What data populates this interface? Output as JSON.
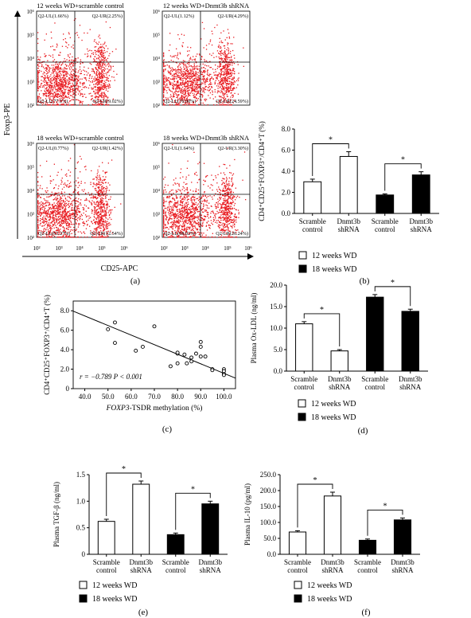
{
  "colors": {
    "flow_dots": "#e8191f",
    "bar_12": "#ffffff",
    "bar_18": "#000000",
    "axis": "#000000",
    "line": "#000000"
  },
  "panels": {
    "a": {
      "label": "(a)"
    },
    "b": {
      "label": "(b)"
    },
    "c": {
      "label": "(c)"
    },
    "d": {
      "label": "(d)"
    },
    "e": {
      "label": "(e)"
    },
    "f": {
      "label": "(f)"
    }
  },
  "flow": {
    "y_axis_label": "Foxp3-PE",
    "x_axis_label": "CD25-APC",
    "tick_labels": [
      "10²",
      "10³",
      "10⁴",
      "10⁵",
      "10⁶"
    ],
    "bottom_ticks": [
      "10²",
      "10³",
      "10⁴",
      "10⁵",
      "10⁶"
    ],
    "plots": [
      {
        "title": "12 weeks WD+scramble control",
        "ul": "Q2-UL(1.66%)",
        "ur": "Q2-UR(2.25%)",
        "ll": "Q2-LL(77.1%)",
        "lr": "Q2-LR(9.02%)"
      },
      {
        "title": "12 weeks WD+Dnmt3b shRNA",
        "ul": "Q2-UL(1.12%)",
        "ur": "Q2-UR(4.29%)",
        "ll": "Q2-LL(70.00%)",
        "lr": "Q2-LR(24.59%)"
      },
      {
        "title": "18 weeks WD+scramble control",
        "ul": "Q2-UL(0.77%)",
        "ur": "Q2-UR(1.42%)",
        "ll": "Q2-LL(63.27%)",
        "lr": "Q2-LR(12.54%)"
      },
      {
        "title": "18 weeks WD+Dnmt3b shRNA",
        "ul": "Q2-UL(1.64%)",
        "ur": "Q2-UR(3.30%)",
        "ll": "Q2-LL(68.02%)",
        "lr": "Q2-LR(26.24%)"
      }
    ]
  },
  "legend": {
    "label_12": "12 weeks WD",
    "label_18": "18 weeks WD"
  },
  "chart_data": [
    {
      "panel": "b",
      "type": "bar",
      "categories": [
        [
          "Scramble",
          "control"
        ],
        [
          "Dnmt3b",
          "shRNA"
        ],
        [
          "Scramble",
          "control"
        ],
        [
          "Dnmt3b",
          "shRNA"
        ]
      ],
      "values": [
        3.0,
        5.4,
        1.75,
        3.65
      ],
      "errors": [
        0.25,
        0.45,
        0.1,
        0.3
      ],
      "groups": [
        "12 weeks WD",
        "12 weeks WD",
        "18 weeks WD",
        "18 weeks WD"
      ],
      "ylabel": "CD4⁺CD25⁺FOXP3⁺/CD4⁺T (%)",
      "ylim": [
        0,
        8
      ],
      "yticks": [
        "0.0",
        "2.0",
        "4.0",
        "6.0",
        "8.0"
      ],
      "significance": "*"
    },
    {
      "panel": "c",
      "type": "scatter",
      "xlabel_italic": "FOXP3",
      "xlabel_rest": "-TSDR methylation (%)",
      "ylabel": "CD4⁺CD25⁺FOXP3⁺/CD4⁺T (%)",
      "xlim": [
        35,
        105
      ],
      "ylim": [
        0,
        9
      ],
      "xticks": [
        "40.0",
        "50.0",
        "60.0",
        "70.0",
        "80.0",
        "90.0",
        "100.0"
      ],
      "yticks": [
        "0",
        "2.0",
        "4.0",
        "6.0",
        "8.0"
      ],
      "annotation_r": "r = −0.789",
      "annotation_p": "P < 0.001",
      "points": [
        [
          50,
          6.1
        ],
        [
          53,
          6.8
        ],
        [
          53,
          4.7
        ],
        [
          62,
          3.9
        ],
        [
          65,
          4.3
        ],
        [
          70,
          6.4
        ],
        [
          77,
          2.3
        ],
        [
          80,
          3.6
        ],
        [
          80,
          2.6
        ],
        [
          80,
          3.7
        ],
        [
          83,
          3.5
        ],
        [
          84,
          2.6
        ],
        [
          86,
          3.2
        ],
        [
          86,
          2.8
        ],
        [
          88,
          3.6
        ],
        [
          90,
          3.3
        ],
        [
          90,
          4.8
        ],
        [
          90,
          4.3
        ],
        [
          92,
          3.3
        ],
        [
          95,
          2.0
        ],
        [
          95,
          1.9
        ],
        [
          100,
          2.0
        ],
        [
          100,
          1.8
        ],
        [
          100,
          1.5
        ],
        [
          100,
          1.4
        ]
      ],
      "fit": {
        "slope": -0.0983,
        "intercept": 11.4
      }
    },
    {
      "panel": "d",
      "type": "bar",
      "categories": [
        [
          "Scramble",
          "control"
        ],
        [
          "Dnmt3b",
          "shRNA"
        ],
        [
          "Scramble",
          "control"
        ],
        [
          "Dnmt3b",
          "shRNA"
        ]
      ],
      "values": [
        11.0,
        4.7,
        17.2,
        13.9
      ],
      "errors": [
        0.5,
        0.3,
        0.6,
        0.5
      ],
      "groups": [
        "12 weeks WD",
        "12 weeks WD",
        "18 weeks WD",
        "18 weeks WD"
      ],
      "ylabel": "Plasma Ox-LDL (ng/ml)",
      "ylim": [
        0,
        20
      ],
      "yticks": [
        "0.0",
        "5.0",
        "10.0",
        "15.0",
        "20.0"
      ],
      "significance": "*"
    },
    {
      "panel": "e",
      "type": "bar",
      "categories": [
        [
          "Scramble",
          "control"
        ],
        [
          "Dnmt3b",
          "shRNA"
        ],
        [
          "Scramble",
          "control"
        ],
        [
          "Dnmt3b",
          "shRNA"
        ]
      ],
      "values": [
        0.62,
        1.32,
        0.37,
        0.95
      ],
      "errors": [
        0.04,
        0.06,
        0.03,
        0.05
      ],
      "groups": [
        "12 weeks WD",
        "12 weeks WD",
        "18 weeks WD",
        "18 weeks WD"
      ],
      "ylabel": "Plasma TGF-β (ng/ml)",
      "ylim": [
        0,
        1.5
      ],
      "yticks": [
        "0",
        "0.5",
        "1.0",
        "1.5"
      ],
      "significance": "*"
    },
    {
      "panel": "f",
      "type": "bar",
      "categories": [
        [
          "Scramble",
          "control"
        ],
        [
          "Dnmt3b",
          "shRNA"
        ],
        [
          "Scramble",
          "control"
        ],
        [
          "Dnmt3b",
          "shRNA"
        ]
      ],
      "values": [
        70,
        183,
        44,
        108
      ],
      "errors": [
        4,
        12,
        4,
        6
      ],
      "groups": [
        "12 weeks WD",
        "12 weeks WD",
        "18 weeks WD",
        "18 weeks WD"
      ],
      "ylabel": "Plasma IL-10 (pg/ml)",
      "ylim": [
        0,
        250
      ],
      "yticks": [
        "0.0",
        "50.0",
        "100.0",
        "150.0",
        "200.0",
        "250.0"
      ],
      "significance": "*"
    }
  ]
}
